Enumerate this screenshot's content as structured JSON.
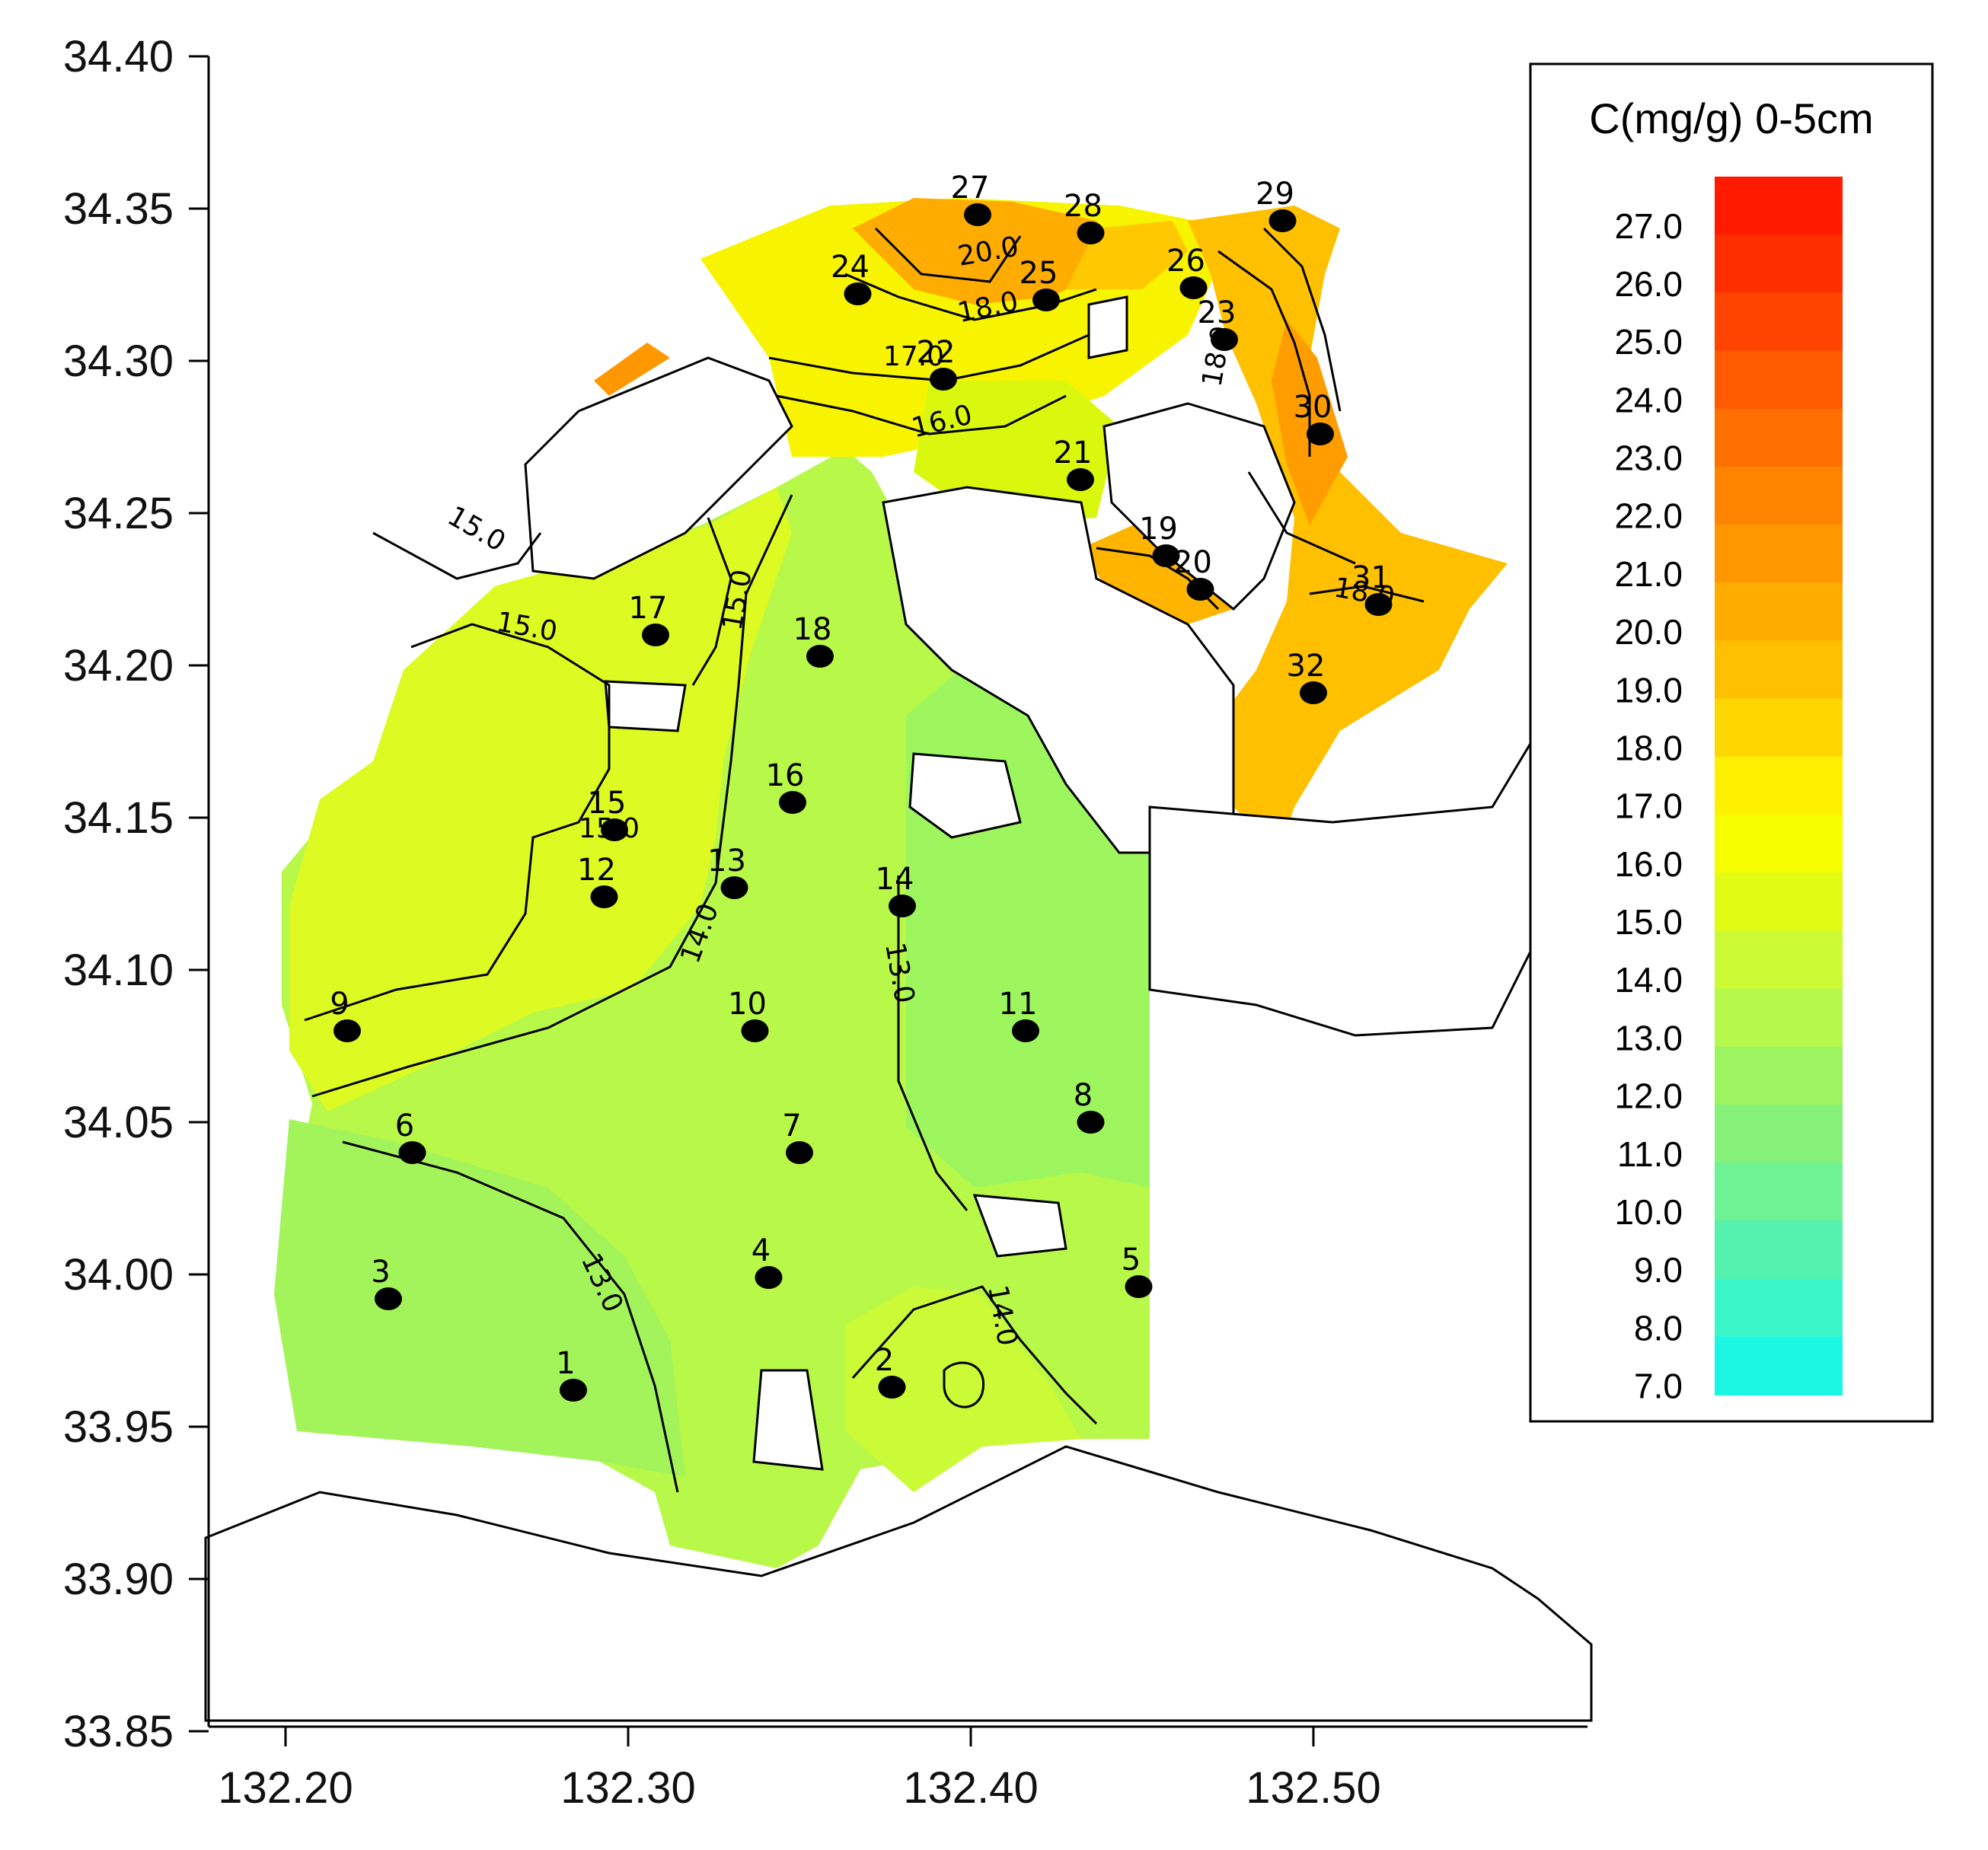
{
  "legend": {
    "title": "C(mg/g) 0-5cm",
    "levels": [
      "27.0",
      "26.0",
      "25.0",
      "24.0",
      "23.0",
      "22.0",
      "21.0",
      "20.0",
      "19.0",
      "18.0",
      "17.0",
      "16.0",
      "15.0",
      "14.0",
      "13.0",
      "12.0",
      "11.0",
      "10.0",
      "9.0",
      "8.0",
      "7.0"
    ],
    "colors": [
      "#ff1a00",
      "#ff2e00",
      "#ff4400",
      "#ff5a00",
      "#ff7000",
      "#ff8400",
      "#ff9800",
      "#ffac00",
      "#ffc000",
      "#ffd700",
      "#fff000",
      "#f6ff00",
      "#e2fb14",
      "#ccfa34",
      "#b6f84c",
      "#9cf460",
      "#86f27a",
      "#6ef294",
      "#54f2ae",
      "#3af6c8",
      "#1cf7e4"
    ]
  },
  "axes": {
    "y_ticks": [
      "34.40",
      "34.35",
      "34.30",
      "34.25",
      "34.20",
      "34.15",
      "34.10",
      "34.05",
      "34.00",
      "33.95",
      "33.90",
      "33.85"
    ],
    "x_ticks": [
      "132.20",
      "132.30",
      "132.40",
      "132.50"
    ],
    "xlim": [
      132.178,
      132.583
    ],
    "ylim": [
      33.85,
      34.4
    ]
  },
  "stations": [
    {
      "label": "1",
      "lon": 132.284,
      "lat": 33.962
    },
    {
      "label": "2",
      "lon": 132.377,
      "lat": 33.963
    },
    {
      "label": "3",
      "lon": 132.23,
      "lat": 33.992
    },
    {
      "label": "4",
      "lon": 132.341,
      "lat": 33.999
    },
    {
      "label": "5",
      "lon": 132.449,
      "lat": 33.996
    },
    {
      "label": "6",
      "lon": 132.237,
      "lat": 34.04
    },
    {
      "label": "7",
      "lon": 132.35,
      "lat": 34.04
    },
    {
      "label": "8",
      "lon": 132.435,
      "lat": 34.05
    },
    {
      "label": "9",
      "lon": 132.218,
      "lat": 34.08
    },
    {
      "label": "10",
      "lon": 132.337,
      "lat": 34.08
    },
    {
      "label": "11",
      "lon": 132.416,
      "lat": 34.08
    },
    {
      "label": "12",
      "lon": 132.293,
      "lat": 34.124
    },
    {
      "label": "13",
      "lon": 132.331,
      "lat": 34.127
    },
    {
      "label": "14",
      "lon": 132.38,
      "lat": 34.121
    },
    {
      "label": "15",
      "lon": 132.296,
      "lat": 34.146
    },
    {
      "label": "16",
      "lon": 132.348,
      "lat": 34.155
    },
    {
      "label": "17",
      "lon": 132.308,
      "lat": 34.21
    },
    {
      "label": "18",
      "lon": 132.356,
      "lat": 34.203
    },
    {
      "label": "19",
      "lon": 132.457,
      "lat": 34.236
    },
    {
      "label": "20",
      "lon": 132.467,
      "lat": 34.225
    },
    {
      "label": "21",
      "lon": 132.432,
      "lat": 34.261
    },
    {
      "label": "22",
      "lon": 132.392,
      "lat": 34.294
    },
    {
      "label": "23",
      "lon": 132.474,
      "lat": 34.307
    },
    {
      "label": "24",
      "lon": 132.367,
      "lat": 34.322
    },
    {
      "label": "25",
      "lon": 132.422,
      "lat": 34.32
    },
    {
      "label": "26",
      "lon": 132.465,
      "lat": 34.324
    },
    {
      "label": "27",
      "lon": 132.402,
      "lat": 34.348
    },
    {
      "label": "28",
      "lon": 132.435,
      "lat": 34.342
    },
    {
      "label": "29",
      "lon": 132.491,
      "lat": 34.346
    },
    {
      "label": "30",
      "lon": 132.502,
      "lat": 34.276
    },
    {
      "label": "31",
      "lon": 132.519,
      "lat": 34.22
    },
    {
      "label": "32",
      "lon": 132.5,
      "lat": 34.191
    }
  ],
  "contour_labels": [
    "20.0",
    "18.0",
    "16.0",
    "15.0",
    "15.0",
    "15.0",
    "15.0",
    "14.0",
    "14.0",
    "13.0",
    "13.0",
    "18.0",
    "18.0",
    "17.0"
  ]
}
